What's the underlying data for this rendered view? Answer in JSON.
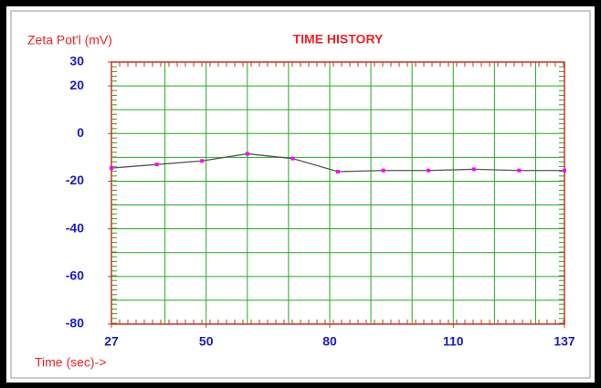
{
  "chart_data": {
    "type": "line",
    "title": "TIME HISTORY",
    "y_label": "Zeta Pot'l (mV)",
    "x_label": "Time (sec)->",
    "x": [
      27,
      38,
      49,
      60,
      71,
      82,
      93,
      104,
      115,
      126,
      137
    ],
    "series": [
      {
        "name": null,
        "color": "#555555",
        "marker_color": "#ff00ff",
        "values": [
          -14.5,
          -13,
          -11.5,
          -8.5,
          -10.5,
          -16,
          -15.5,
          -15.5,
          -15,
          -15.5,
          -15.5
        ]
      }
    ],
    "xlim": [
      27,
      137
    ],
    "xticks": [
      27,
      50,
      80,
      110,
      137
    ],
    "ylim": [
      -80,
      30
    ],
    "yticks": [
      30,
      20,
      0,
      -20,
      -40,
      -60,
      -80
    ],
    "xgrid": [
      40,
      50,
      60,
      70,
      80,
      90,
      100,
      110,
      120,
      130
    ],
    "ygrid": [
      20,
      10,
      0,
      -10,
      -20,
      -30,
      -40,
      -50,
      -60,
      -70
    ],
    "grid": true,
    "grid_color": "#22aa22",
    "frame_color": "#cc3322",
    "label_color": "#ee2222",
    "tick_color": "#1a1acc"
  }
}
